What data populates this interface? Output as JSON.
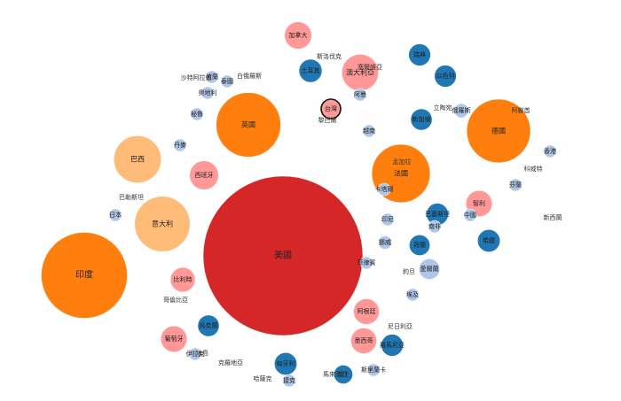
{
  "chart_data": {
    "type": "bubble-pack",
    "title": "",
    "color_scale": {
      "dark_red": "#d62728",
      "orange": "#ff7f0e",
      "light_orange": "#ffbb78",
      "pink": "#ff9896",
      "dark_blue": "#1f77b4",
      "light_blue": "#aec7e8"
    },
    "bubbles": [
      {
        "name": "美國",
        "value": 10000,
        "color": "#d62728"
      },
      {
        "name": "印度",
        "value": 2900,
        "color": "#ff7f0e"
      },
      {
        "name": "英國",
        "value": 1640,
        "color": "#ff7f0e"
      },
      {
        "name": "德國",
        "value": 1590,
        "color": "#ff7f0e"
      },
      {
        "name": "法國",
        "value": 1340,
        "color": "#ff7f0e"
      },
      {
        "name": "意大利",
        "value": 1200,
        "color": "#ffbb78"
      },
      {
        "name": "巴西",
        "value": 880,
        "color": "#ffbb78"
      },
      {
        "name": "澳大利亞",
        "value": 530,
        "color": "#ff9896"
      },
      {
        "name": "西班牙",
        "value": 330,
        "color": "#ff9896"
      },
      {
        "name": "加拿大",
        "value": 290,
        "color": "#ff9896"
      },
      {
        "name": "比利時",
        "value": 240,
        "color": "#ff9896"
      },
      {
        "name": "葡萄牙",
        "value": 270,
        "color": "#ff9896"
      },
      {
        "name": "墨西哥",
        "value": 260,
        "color": "#ff9896"
      },
      {
        "name": "智利",
        "value": 270,
        "color": "#ff9896"
      },
      {
        "name": "阿根廷",
        "value": 260,
        "color": "#ff9896"
      },
      {
        "name": "台灣",
        "value": 150,
        "color": "#ff9896",
        "highlight": true
      },
      {
        "name": "土耳其",
        "value": 210,
        "color": "#1f77b4"
      },
      {
        "name": "瑞典",
        "value": 190,
        "color": "#1f77b4"
      },
      {
        "name": "以色列",
        "value": 190,
        "color": "#1f77b4"
      },
      {
        "name": "新加坡",
        "value": 180,
        "color": "#1f77b4"
      },
      {
        "name": "匈牙利",
        "value": 200,
        "color": "#1f77b4"
      },
      {
        "name": "巴基斯坦",
        "value": 190,
        "color": "#1f77b4"
      },
      {
        "name": "瑞士",
        "value": 140,
        "color": "#1f77b4"
      },
      {
        "name": "烏克蘭",
        "value": 180,
        "color": "#1f77b4"
      },
      {
        "name": "希臘",
        "value": 200,
        "color": "#1f77b4"
      },
      {
        "name": "荷蘭",
        "value": 170,
        "color": "#1f77b4"
      },
      {
        "name": "羅馬尼亞",
        "value": 190,
        "color": "#1f77b4"
      },
      {
        "name": "愛爾蘭",
        "value": 170,
        "color": "#aec7e8"
      },
      {
        "name": "俄羅斯",
        "value": 80,
        "color": "#aec7e8"
      },
      {
        "name": "中國",
        "value": 60,
        "color": "#aec7e8"
      },
      {
        "name": "日本",
        "value": 40,
        "color": "#aec7e8"
      },
      {
        "name": "香港",
        "value": 60,
        "color": "#aec7e8"
      },
      {
        "name": "丹麥",
        "value": 60,
        "color": "#aec7e8"
      },
      {
        "name": "秘魯",
        "value": 50,
        "color": "#aec7e8"
      },
      {
        "name": "奧地利",
        "value": 50,
        "color": "#aec7e8"
      },
      {
        "name": "芬蘭",
        "value": 60,
        "color": "#aec7e8"
      },
      {
        "name": "挪威",
        "value": 70,
        "color": "#aec7e8"
      },
      {
        "name": "卡塔爾",
        "value": 60,
        "color": "#aec7e8"
      },
      {
        "name": "泰國",
        "value": 60,
        "color": "#aec7e8"
      },
      {
        "name": "南非",
        "value": 50,
        "color": "#aec7e8"
      },
      {
        "name": "伊拉克",
        "value": 50,
        "color": "#aec7e8"
      },
      {
        "name": "波蘭",
        "value": 50,
        "color": "#aec7e8"
      },
      {
        "name": "捷克",
        "value": 50,
        "color": "#aec7e8"
      },
      {
        "name": "越南",
        "value": 50,
        "color": "#aec7e8"
      },
      {
        "name": "印尼",
        "value": 50,
        "color": "#aec7e8"
      },
      {
        "name": "菲律賓",
        "value": 50,
        "color": "#aec7e8"
      },
      {
        "name": "阿曼",
        "value": 50,
        "color": "#aec7e8"
      },
      {
        "name": "埃及",
        "value": 40,
        "color": "#aec7e8"
      },
      {
        "name": "斯里蘭卡",
        "value": 50,
        "color": "#aec7e8"
      }
    ],
    "external_labels": [
      "尼日利亞",
      "巴勒斯坦",
      "阿聯酋",
      "白俄羅斯",
      "斯洛伐克",
      "哥倫比亞",
      "科威特",
      "新西蘭",
      "馬來西亞",
      "沙特阿拉伯",
      "約旦",
      "黎巴嫩",
      "哈薩克",
      "塞爾維亞",
      "孟加拉",
      "克羅地亞",
      "立陶宛",
      "冰島"
    ]
  }
}
